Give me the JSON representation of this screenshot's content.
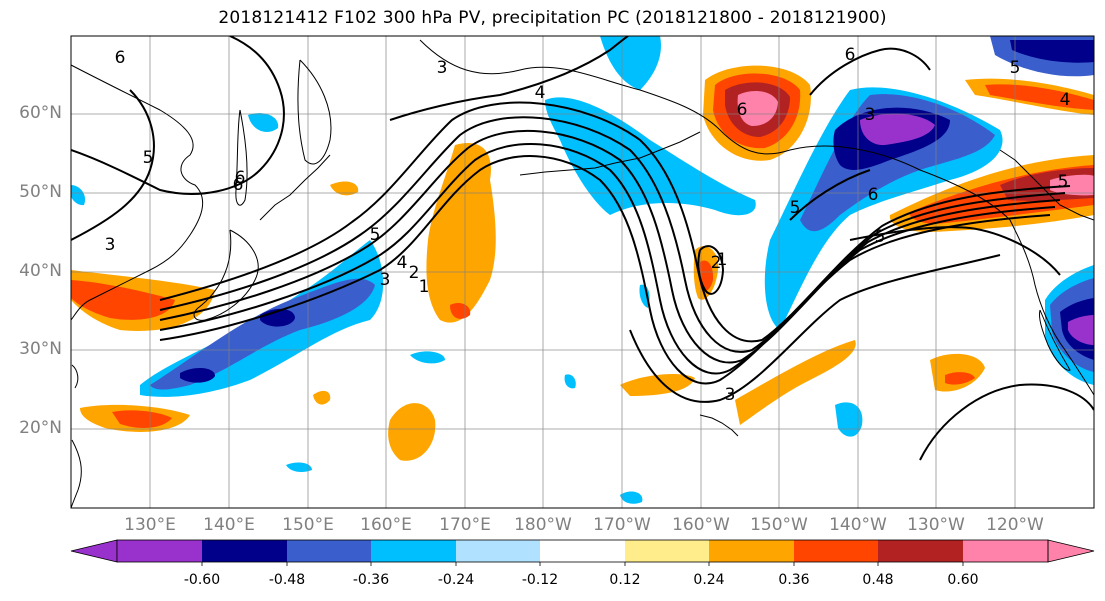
{
  "title": "2018121412 F102 300 hPa PV, precipitation PC (2018121800 - 2018121900)",
  "lat_labels": [
    "60°N",
    "50°N",
    "40°N",
    "30°N",
    "20°N"
  ],
  "lon_labels": [
    "130°E",
    "140°E",
    "150°E",
    "160°E",
    "170°E",
    "180°W",
    "170°W",
    "160°W",
    "150°W",
    "140°W",
    "130°W",
    "120°W"
  ],
  "contour_labels": [
    "6",
    "3",
    "4",
    "5",
    "6",
    "3",
    "5",
    "6",
    "5",
    "6",
    "5",
    "6",
    "5",
    "3",
    "4",
    "5",
    "3",
    "2",
    "1",
    "2",
    "1",
    "6",
    "3",
    "4"
  ],
  "colorbar": {
    "tick_labels": [
      "-0.60",
      "-0.48",
      "-0.36",
      "-0.24",
      "-0.12",
      "0.12",
      "0.24",
      "0.36",
      "0.48",
      "0.60"
    ],
    "colors": [
      "#9932CC",
      "#00008B",
      "#3A5FCD",
      "#00BFFF",
      "#B0E2FF",
      "#FFFFFF",
      "#FFEC8B",
      "#FFA500",
      "#FF4500",
      "#B22222",
      "#FF82AB"
    ]
  },
  "colors": {
    "land_outline": "#000000",
    "grid": "#808080",
    "label_gray": "#808080"
  }
}
